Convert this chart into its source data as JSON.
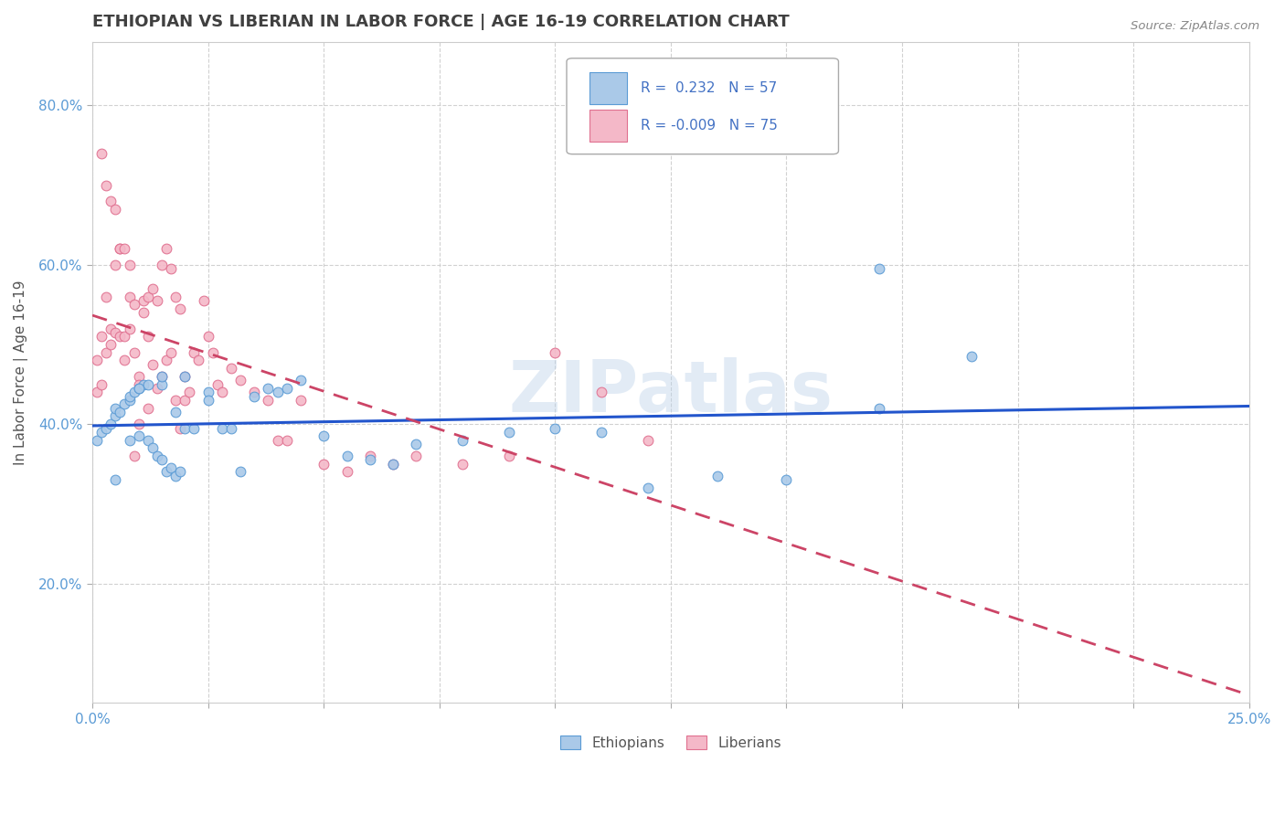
{
  "title": "ETHIOPIAN VS LIBERIAN IN LABOR FORCE | AGE 16-19 CORRELATION CHART",
  "source_text": "Source: ZipAtlas.com",
  "ylabel": "In Labor Force | Age 16-19",
  "xlim": [
    0.0,
    0.25
  ],
  "ylim": [
    0.05,
    0.88
  ],
  "xticks": [
    0.0,
    0.025,
    0.05,
    0.075,
    0.1,
    0.125,
    0.15,
    0.175,
    0.2,
    0.225,
    0.25
  ],
  "xtick_labels": [
    "0.0%",
    "",
    "",
    "",
    "",
    "",
    "",
    "",
    "",
    "",
    "25.0%"
  ],
  "ytick_positions": [
    0.2,
    0.4,
    0.6,
    0.8
  ],
  "ytick_labels": [
    "20.0%",
    "40.0%",
    "60.0%",
    "80.0%"
  ],
  "r_ethiopian": 0.232,
  "n_ethiopian": 57,
  "r_liberian": -0.009,
  "n_liberian": 75,
  "blue_color": "#aac9e8",
  "pink_color": "#f4b8c8",
  "blue_edge_color": "#5b9bd5",
  "pink_edge_color": "#e07090",
  "blue_line_color": "#2255cc",
  "pink_line_color": "#cc4466",
  "legend_label_1": "Ethiopians",
  "legend_label_2": "Liberians",
  "background_color": "#ffffff",
  "grid_color": "#cccccc",
  "title_color": "#404040",
  "watermark": "ZIPatlas",
  "ethiopian_x": [
    0.001,
    0.002,
    0.003,
    0.004,
    0.005,
    0.005,
    0.006,
    0.007,
    0.008,
    0.008,
    0.009,
    0.01,
    0.01,
    0.011,
    0.012,
    0.013,
    0.014,
    0.015,
    0.015,
    0.016,
    0.017,
    0.018,
    0.019,
    0.02,
    0.022,
    0.025,
    0.028,
    0.03,
    0.032,
    0.035,
    0.038,
    0.04,
    0.042,
    0.045,
    0.05,
    0.055,
    0.06,
    0.065,
    0.07,
    0.08,
    0.09,
    0.1,
    0.11,
    0.12,
    0.135,
    0.15,
    0.17,
    0.19,
    0.005,
    0.008,
    0.01,
    0.012,
    0.015,
    0.018,
    0.02,
    0.025,
    0.17
  ],
  "ethiopian_y": [
    0.38,
    0.39,
    0.395,
    0.4,
    0.41,
    0.42,
    0.415,
    0.425,
    0.43,
    0.435,
    0.44,
    0.385,
    0.445,
    0.45,
    0.38,
    0.37,
    0.36,
    0.355,
    0.45,
    0.34,
    0.345,
    0.335,
    0.34,
    0.395,
    0.395,
    0.44,
    0.395,
    0.395,
    0.34,
    0.435,
    0.445,
    0.44,
    0.445,
    0.455,
    0.385,
    0.36,
    0.355,
    0.35,
    0.375,
    0.38,
    0.39,
    0.395,
    0.39,
    0.32,
    0.335,
    0.33,
    0.595,
    0.485,
    0.33,
    0.38,
    0.445,
    0.45,
    0.46,
    0.415,
    0.46,
    0.43,
    0.42
  ],
  "liberian_x": [
    0.001,
    0.001,
    0.002,
    0.002,
    0.003,
    0.003,
    0.004,
    0.004,
    0.005,
    0.005,
    0.006,
    0.006,
    0.007,
    0.007,
    0.008,
    0.008,
    0.009,
    0.009,
    0.01,
    0.01,
    0.011,
    0.011,
    0.012,
    0.012,
    0.013,
    0.013,
    0.014,
    0.014,
    0.015,
    0.015,
    0.016,
    0.016,
    0.017,
    0.017,
    0.018,
    0.018,
    0.019,
    0.019,
    0.02,
    0.02,
    0.021,
    0.022,
    0.023,
    0.024,
    0.025,
    0.026,
    0.027,
    0.028,
    0.03,
    0.032,
    0.035,
    0.038,
    0.04,
    0.042,
    0.045,
    0.05,
    0.055,
    0.06,
    0.065,
    0.07,
    0.08,
    0.09,
    0.1,
    0.11,
    0.12,
    0.002,
    0.003,
    0.004,
    0.005,
    0.006,
    0.007,
    0.008,
    0.009,
    0.01,
    0.012
  ],
  "liberian_y": [
    0.44,
    0.48,
    0.45,
    0.51,
    0.49,
    0.56,
    0.5,
    0.52,
    0.515,
    0.6,
    0.51,
    0.62,
    0.48,
    0.51,
    0.52,
    0.56,
    0.49,
    0.55,
    0.46,
    0.45,
    0.555,
    0.54,
    0.56,
    0.51,
    0.57,
    0.475,
    0.555,
    0.445,
    0.6,
    0.46,
    0.62,
    0.48,
    0.595,
    0.49,
    0.56,
    0.43,
    0.545,
    0.395,
    0.46,
    0.43,
    0.44,
    0.49,
    0.48,
    0.555,
    0.51,
    0.49,
    0.45,
    0.44,
    0.47,
    0.455,
    0.44,
    0.43,
    0.38,
    0.38,
    0.43,
    0.35,
    0.34,
    0.36,
    0.35,
    0.36,
    0.35,
    0.36,
    0.49,
    0.44,
    0.38,
    0.74,
    0.7,
    0.68,
    0.67,
    0.62,
    0.62,
    0.6,
    0.36,
    0.4,
    0.42
  ]
}
